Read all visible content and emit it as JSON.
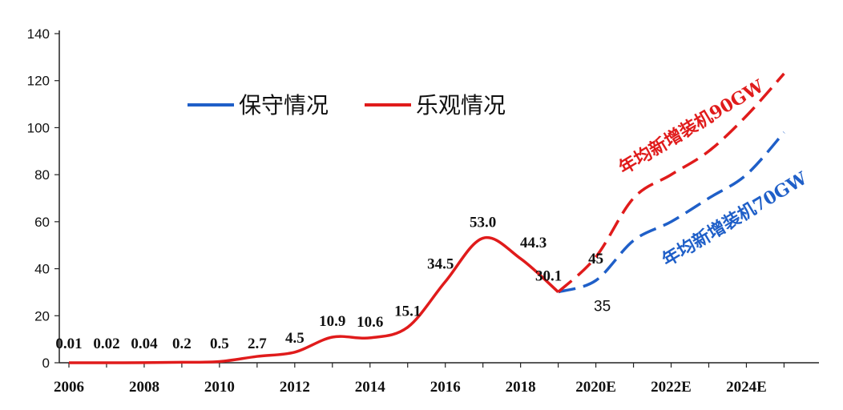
{
  "chart_data": {
    "type": "line",
    "ylim": [
      0,
      140
    ],
    "yticks": [
      0,
      20,
      40,
      60,
      80,
      100,
      120,
      140
    ],
    "x_tick_labels": [
      "2006",
      "2008",
      "2010",
      "2012",
      "2014",
      "2016",
      "2018",
      "2020E",
      "2022E",
      "2024E"
    ],
    "historical": {
      "color": "#e01b1b",
      "x": [
        2006,
        2007,
        2008,
        2009,
        2010,
        2011,
        2012,
        2013,
        2014,
        2015,
        2016,
        2017,
        2018,
        2019
      ],
      "y": [
        0.01,
        0.02,
        0.04,
        0.2,
        0.5,
        2.7,
        4.5,
        10.9,
        10.6,
        15.1,
        34.5,
        53.0,
        44.3,
        30.1
      ],
      "labels": [
        "0.01",
        "0.02",
        "0.04",
        "0.2",
        "0.5",
        "2.7",
        "4.5",
        "10.9",
        "10.6",
        "15.1",
        "34.5",
        "53.0",
        "44.3",
        "30.1"
      ]
    },
    "series": [
      {
        "name": "保守情况",
        "color": "#1f5fc8",
        "x": [
          2019,
          2020,
          2021,
          2022,
          2023,
          2024,
          2025
        ],
        "y": [
          30.1,
          35,
          52,
          60,
          70,
          80,
          98
        ],
        "point_labels": [
          {
            "x": 2020,
            "text": "35"
          }
        ]
      },
      {
        "name": "乐观情况",
        "color": "#e01b1b",
        "x": [
          2019,
          2020,
          2021,
          2022,
          2023,
          2024,
          2025
        ],
        "y": [
          30.1,
          45,
          70,
          80,
          90,
          105,
          123
        ],
        "point_labels": [
          {
            "x": 2020,
            "text": "45"
          }
        ]
      }
    ],
    "annotations": [
      {
        "text": "年均新增装机90GW",
        "color": "#e01b1b"
      },
      {
        "text": "年均新增装机70GW",
        "color": "#1f5fc8"
      }
    ],
    "legend": "top-left"
  }
}
